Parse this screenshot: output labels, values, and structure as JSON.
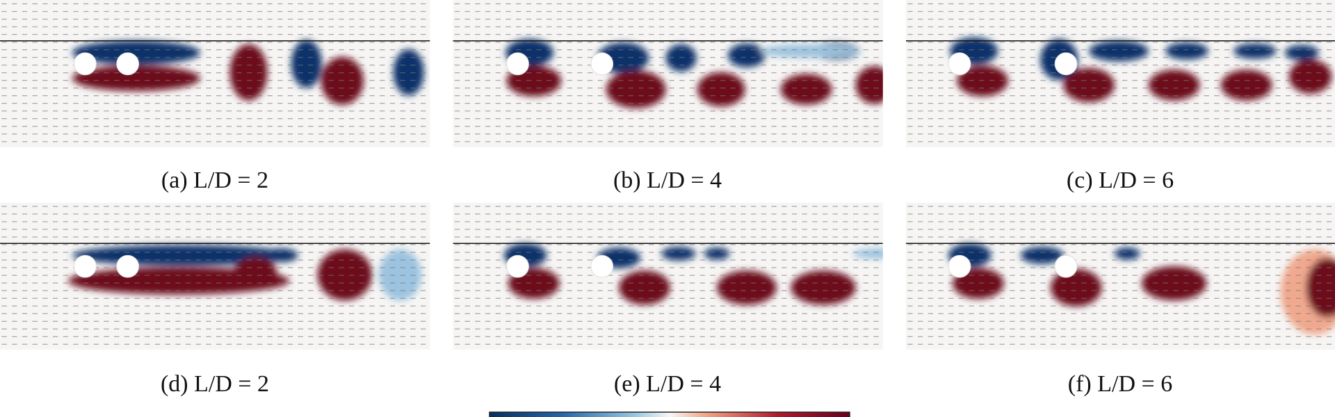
{
  "panels": [
    {
      "caption": "(a) L/D = 2"
    },
    {
      "caption": "(b) L/D = 4"
    },
    {
      "caption": "(c) L/D = 6"
    },
    {
      "caption": "(d) L/D = 2"
    },
    {
      "caption": "(e) L/D = 4"
    },
    {
      "caption": "(f) L/D = 6"
    }
  ]
}
